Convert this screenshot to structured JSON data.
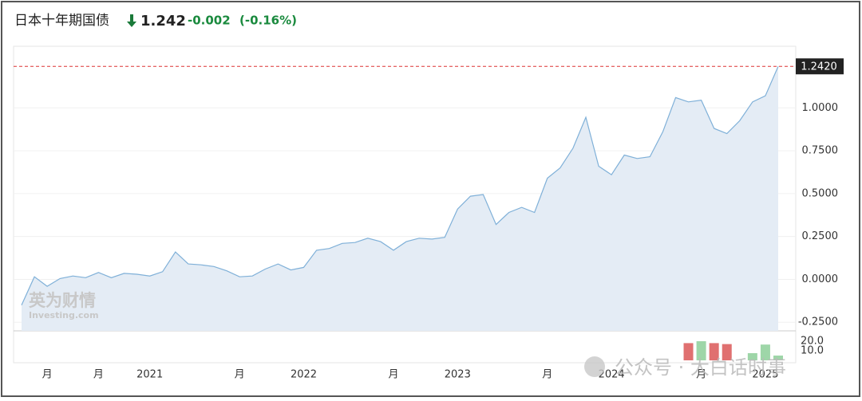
{
  "header": {
    "title": "日本十年期国债",
    "price": "1.242",
    "change": "-0.002",
    "change_percent": "(-0.16%)"
  },
  "watermarks": {
    "logo_cn": "英为财情",
    "logo_en": "Investing.com",
    "account": "公众号 · 大白话时事"
  },
  "chart_data": [
    {
      "type": "area",
      "color": "#7fb0d8",
      "fill": "#e4ecf5",
      "grid": true,
      "categories": [
        null,
        null,
        "月",
        null,
        null,
        null,
        "月",
        null,
        null,
        null,
        "2021",
        null,
        null,
        null,
        null,
        null,
        null,
        "月",
        null,
        null,
        null,
        null,
        "2022",
        null,
        null,
        null,
        null,
        null,
        null,
        "月",
        null,
        null,
        null,
        null,
        "2023",
        null,
        null,
        null,
        null,
        null,
        null,
        "月",
        null,
        null,
        null,
        null,
        "2024",
        null,
        null,
        null,
        null,
        null,
        null,
        "月",
        null,
        null,
        null,
        null,
        "2025",
        null
      ],
      "values": [
        -0.15,
        0.015,
        -0.04,
        0.005,
        0.02,
        0.01,
        0.04,
        0.01,
        0.035,
        0.03,
        0.02,
        0.045,
        0.16,
        0.09,
        0.085,
        0.075,
        0.05,
        0.015,
        0.02,
        0.06,
        0.09,
        0.055,
        0.07,
        0.17,
        0.18,
        0.21,
        0.215,
        0.24,
        0.22,
        0.17,
        0.22,
        0.24,
        0.235,
        0.245,
        0.41,
        0.485,
        0.495,
        0.32,
        0.39,
        0.42,
        0.39,
        0.59,
        0.65,
        0.765,
        0.945,
        0.66,
        0.61,
        0.725,
        0.705,
        0.715,
        0.86,
        1.06,
        1.035,
        1.045,
        0.88,
        0.85,
        0.925,
        1.035,
        1.07,
        1.242
      ],
      "current_value_label": "1.2420",
      "ylim": [
        -0.3,
        1.35
      ],
      "yticks": [
        {
          "value": -0.25,
          "label": "-0.2500"
        },
        {
          "value": 0,
          "label": "0.0000"
        },
        {
          "value": 0.25,
          "label": "0.2500"
        },
        {
          "value": 0.5,
          "label": "0.5000"
        },
        {
          "value": 0.75,
          "label": "0.7500"
        },
        {
          "value": 1,
          "label": "1.0000"
        }
      ]
    },
    {
      "type": "bar",
      "values": [
        null,
        null,
        null,
        null,
        null,
        null,
        null,
        null,
        null,
        null,
        null,
        null,
        null,
        null,
        null,
        null,
        null,
        null,
        null,
        null,
        null,
        null,
        null,
        null,
        null,
        null,
        null,
        null,
        null,
        null,
        null,
        null,
        null,
        null,
        null,
        null,
        null,
        null,
        null,
        null,
        null,
        null,
        null,
        null,
        null,
        null,
        null,
        null,
        null,
        null,
        null,
        null,
        18,
        20,
        18,
        17,
        null,
        7.5,
        16.5,
        5
      ],
      "colors": [
        null,
        null,
        null,
        null,
        null,
        null,
        null,
        null,
        null,
        null,
        null,
        null,
        null,
        null,
        null,
        null,
        null,
        null,
        null,
        null,
        null,
        null,
        null,
        null,
        null,
        null,
        null,
        null,
        null,
        null,
        null,
        null,
        null,
        null,
        null,
        null,
        null,
        null,
        null,
        null,
        null,
        null,
        null,
        null,
        null,
        null,
        null,
        null,
        null,
        null,
        null,
        null,
        "#e07070",
        "#9ed6a8",
        "#e07070",
        "#e07070",
        null,
        "#9ed6a8",
        "#9ed6a8",
        "#9ed6a8"
      ],
      "ylim": [
        0,
        30
      ],
      "yticks": [
        {
          "value": 10,
          "label": "10.0"
        },
        {
          "value": 20,
          "label": "20.0"
        }
      ]
    }
  ]
}
